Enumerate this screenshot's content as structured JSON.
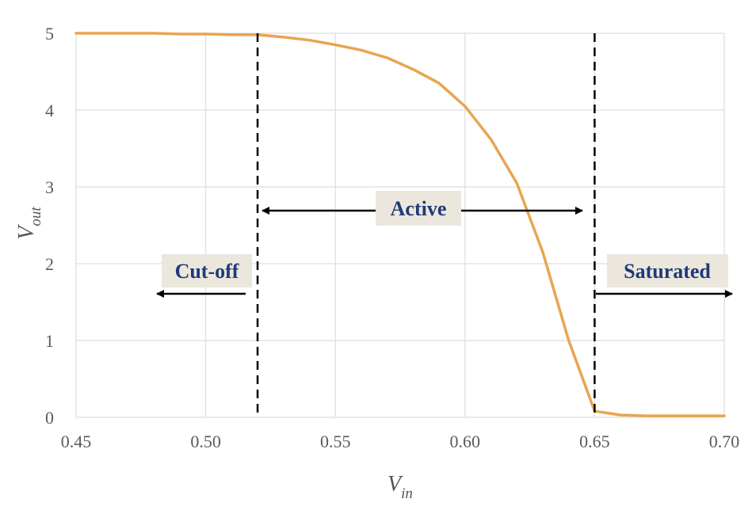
{
  "chart_data": {
    "type": "line",
    "title": "",
    "xlabel": {
      "main": "V",
      "sub": "in"
    },
    "ylabel": {
      "main": "V",
      "sub": "out"
    },
    "xlim": [
      0.45,
      0.7
    ],
    "ylim": [
      0,
      5
    ],
    "x_ticks": [
      "0.45",
      "0.50",
      "0.55",
      "0.60",
      "0.65",
      "0.70"
    ],
    "y_ticks": [
      "0",
      "1",
      "2",
      "3",
      "4",
      "5"
    ],
    "grid": true,
    "series": [
      {
        "color": "#e8a550",
        "x": [
          0.45,
          0.46,
          0.47,
          0.48,
          0.49,
          0.5,
          0.51,
          0.52,
          0.53,
          0.54,
          0.55,
          0.56,
          0.57,
          0.58,
          0.59,
          0.6,
          0.61,
          0.62,
          0.63,
          0.64,
          0.65,
          0.66,
          0.67,
          0.68,
          0.69,
          0.7
        ],
        "y": [
          5.0,
          5.0,
          5.0,
          5.0,
          4.99,
          4.99,
          4.98,
          4.98,
          4.95,
          4.91,
          4.85,
          4.78,
          4.68,
          4.53,
          4.35,
          4.05,
          3.62,
          3.05,
          2.15,
          1.0,
          0.08,
          0.03,
          0.02,
          0.02,
          0.02,
          0.02
        ]
      }
    ],
    "boundaries": [
      0.52,
      0.65
    ],
    "regions": [
      {
        "label": "Cut-off",
        "arrow": "left"
      },
      {
        "label": "Active",
        "arrow": "both"
      },
      {
        "label": "Saturated",
        "arrow": "right"
      }
    ],
    "colors": {
      "line": "#e8a550",
      "label_box": "#ece7dd",
      "label_text": "#1f3a78",
      "grid": "#dddddd"
    }
  }
}
